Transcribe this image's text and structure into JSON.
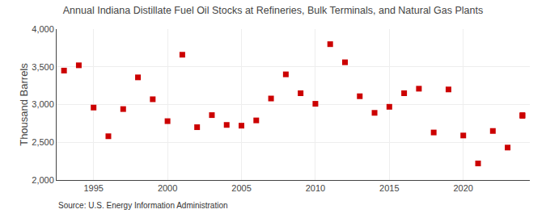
{
  "chart_data": {
    "type": "scatter",
    "title": "Annual Indiana Distillate Fuel Oil Stocks at Refineries, Bulk Terminals, and Natural Gas Plants",
    "ylabel": "Thousand Barrels",
    "annotations": [
      "Source: U.S. Energy Information Administration"
    ],
    "x": [
      1993,
      1994,
      1995,
      1996,
      1997,
      1998,
      1999,
      2000,
      2001,
      2002,
      2003,
      2004,
      2005,
      2006,
      2007,
      2008,
      2009,
      2010,
      2011,
      2012,
      2013,
      2014,
      2015,
      2016,
      2017,
      2018,
      2019,
      2020,
      2021,
      2022,
      2023,
      2024,
      2024
    ],
    "values": [
      3450,
      3520,
      2960,
      2580,
      2940,
      3360,
      3070,
      2780,
      3660,
      2700,
      2860,
      2730,
      2720,
      2790,
      3080,
      3400,
      3150,
      3010,
      3800,
      3560,
      3110,
      2890,
      2970,
      3150,
      3210,
      2630,
      3200,
      2590,
      2220,
      2650,
      2430,
      2860,
      2850
    ],
    "color": "#cc0000",
    "marker": "square",
    "xlim": [
      1992.5,
      2024.5
    ],
    "xticks": [
      1995,
      2000,
      2005,
      2010,
      2015,
      2020
    ],
    "ylim": [
      2000,
      4000
    ],
    "yticks": [
      {
        "value": 2000,
        "label": "2,000"
      },
      {
        "value": 2500,
        "label": "2,500"
      },
      {
        "value": 3000,
        "label": "3,000"
      },
      {
        "value": 3500,
        "label": "3,500"
      },
      {
        "value": 4000,
        "label": "4,000"
      }
    ],
    "grid": true
  }
}
